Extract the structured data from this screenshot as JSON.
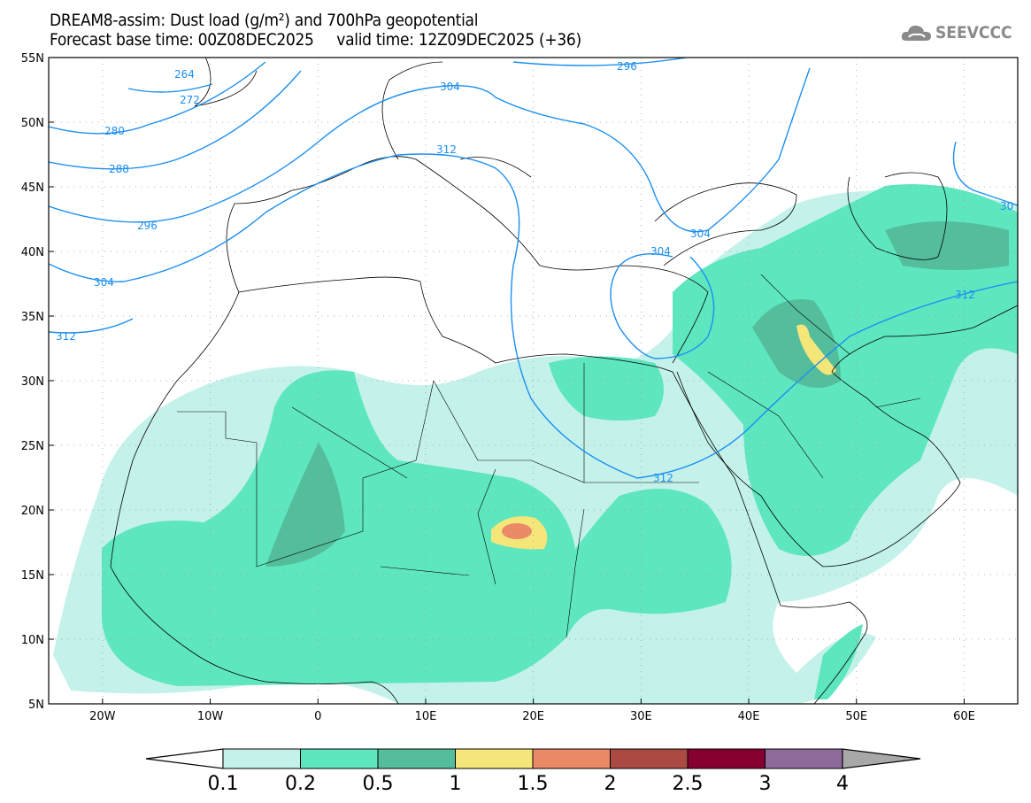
{
  "header": {
    "title": "DREAM8-assim: Dust load (g/m²) and 700hPa geopotential",
    "subtitle": "Forecast base time: 00Z08DEC2025     valid time: 12Z09DEC2025 (+36)",
    "logo": "SEEVCCC"
  },
  "map": {
    "lat_labels": [
      "55N",
      "50N",
      "45N",
      "40N",
      "35N",
      "30N",
      "25N",
      "20N",
      "15N",
      "10N",
      "5N"
    ],
    "lon_labels": [
      "20W",
      "10W",
      "0",
      "10E",
      "20E",
      "30E",
      "40E",
      "50E",
      "60E"
    ],
    "contour_labels": [
      "264",
      "272",
      "280",
      "288",
      "296",
      "304",
      "312",
      "296",
      "304",
      "312",
      "304",
      "304",
      "312",
      "312",
      "30"
    ],
    "contour_color": "#1c8ff0"
  },
  "colorbar": {
    "labels": [
      "0.1",
      "0.2",
      "0.5",
      "1",
      "1.5",
      "2",
      "2.5",
      "3",
      "4"
    ],
    "colors": [
      "#c4f2ea",
      "#5ee6bf",
      "#54bd9c",
      "#f5e67a",
      "#ea8a67",
      "#ab4a42",
      "#850030",
      "#8e6a9a",
      "#a8a8a8"
    ]
  }
}
